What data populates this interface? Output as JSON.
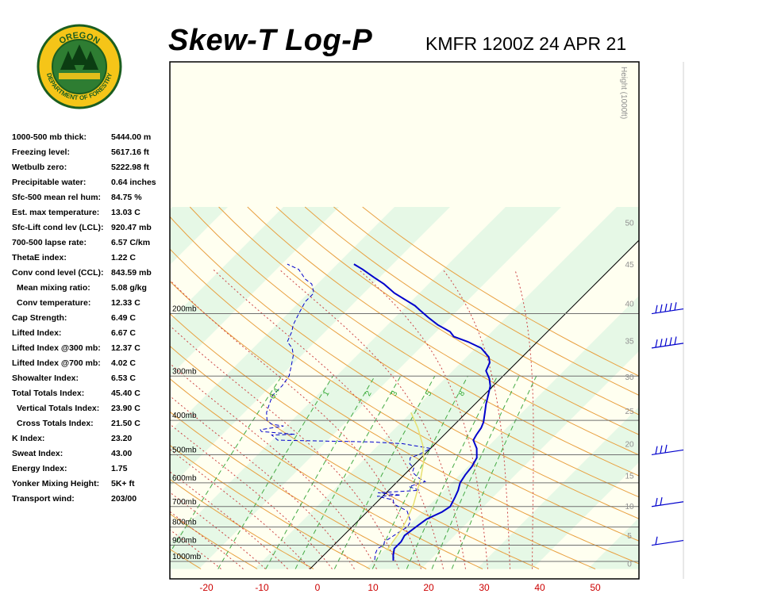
{
  "header": {
    "title": "Skew-T Log-P",
    "station": "KMFR 1200Z 24 APR 21"
  },
  "logo": {
    "top_text": "OREGON",
    "bottom_text": "DEPARTMENT OF FORESTRY",
    "colors": {
      "ring": "#f5c518",
      "center": "#2e7d32",
      "border": "#1b5e20"
    }
  },
  "indices": [
    {
      "label": "1000-500 mb thick:",
      "value": "5444.00 m",
      "indent": false
    },
    {
      "label": "Freezing level:",
      "value": "5617.16 ft",
      "indent": false
    },
    {
      "label": "Wetbulb zero:",
      "value": "5222.98 ft",
      "indent": false
    },
    {
      "label": "Precipitable water:",
      "value": "0.64 inches",
      "indent": false
    },
    {
      "label": "Sfc-500 mean rel hum:",
      "value": "84.75 %",
      "indent": false
    },
    {
      "label": "Est. max temperature:",
      "value": "13.03 C",
      "indent": false
    },
    {
      "label": "Sfc-Lift cond lev (LCL):",
      "value": "920.47 mb",
      "indent": false
    },
    {
      "label": "700-500 lapse rate:",
      "value": "6.57 C/km",
      "indent": false
    },
    {
      "label": "ThetaE index:",
      "value": "1.22 C",
      "indent": false
    },
    {
      "label": "Conv cond level (CCL):",
      "value": "843.59 mb",
      "indent": false
    },
    {
      "label": "Mean mixing ratio:",
      "value": "5.08 g/kg",
      "indent": true
    },
    {
      "label": "Conv temperature:",
      "value": "12.33 C",
      "indent": true
    },
    {
      "label": "Cap Strength:",
      "value": "6.49 C",
      "indent": false
    },
    {
      "label": "Lifted Index:",
      "value": "6.67 C",
      "indent": false
    },
    {
      "label": "Lifted Index @300 mb:",
      "value": "12.37 C",
      "indent": false
    },
    {
      "label": "Lifted Index @700 mb:",
      "value": "4.02 C",
      "indent": false
    },
    {
      "label": "Showalter Index:",
      "value": "6.53 C",
      "indent": false
    },
    {
      "label": "Total Totals Index:",
      "value": "45.40 C",
      "indent": false
    },
    {
      "label": "Vertical Totals Index:",
      "value": "23.90 C",
      "indent": true
    },
    {
      "label": "Cross Totals Index:",
      "value": "21.50 C",
      "indent": true
    },
    {
      "label": "K Index:",
      "value": "23.20",
      "indent": false
    },
    {
      "label": "Sweat Index:",
      "value": "43.00",
      "indent": false
    },
    {
      "label": "Energy Index:",
      "value": "1.75",
      "indent": false
    },
    {
      "label": "Yonker Mixing Height:",
      "value": "5K+ ft",
      "indent": false
    },
    {
      "label": "Transport wind:",
      "value": "203/00",
      "indent": false
    }
  ],
  "chart_data": {
    "type": "line",
    "x_axis": {
      "ticks": [
        -20,
        -10,
        0,
        10,
        20,
        30,
        40,
        50
      ],
      "tick_color": "#cc0000"
    },
    "pressure_levels": [
      {
        "p": 1000,
        "label": "1000mb"
      },
      {
        "p": 900,
        "label": "900mb"
      },
      {
        "p": 800,
        "label": "800mb"
      },
      {
        "p": 700,
        "label": "700mb"
      },
      {
        "p": 600,
        "label": "600mb"
      },
      {
        "p": 500,
        "label": "500mb"
      },
      {
        "p": 400,
        "label": "400mb"
      },
      {
        "p": 300,
        "label": "300mb"
      },
      {
        "p": 200,
        "label": "200mb"
      }
    ],
    "height_axis": {
      "title": "Height (1000ft)",
      "ticks": [
        "0",
        "5",
        "10",
        "15",
        "20",
        "25",
        "30",
        "35",
        "40",
        "45",
        "50"
      ]
    },
    "mixing_ratio_labels": [
      "0.4",
      "1",
      "2",
      "3",
      "5",
      "8"
    ],
    "series": [
      {
        "line": "solid",
        "color": "#0000cc",
        "points": [
          [
            13.5,
            995
          ],
          [
            12.5,
            960
          ],
          [
            11.5,
            920
          ],
          [
            11.5,
            880
          ],
          [
            11,
            845
          ],
          [
            11.5,
            800
          ],
          [
            12,
            760
          ],
          [
            13.5,
            725
          ],
          [
            14,
            700
          ],
          [
            13.2,
            660
          ],
          [
            12.5,
            630
          ],
          [
            11.5,
            600
          ],
          [
            11,
            570
          ],
          [
            10.7,
            540
          ],
          [
            10,
            510
          ],
          [
            8.3,
            480
          ],
          [
            6.2,
            455
          ],
          [
            5.8,
            440
          ],
          [
            5.4,
            420
          ],
          [
            4.8,
            405
          ],
          [
            3.3,
            380
          ],
          [
            2,
            360
          ],
          [
            0.8,
            340
          ],
          [
            -0.5,
            320
          ],
          [
            -2,
            305
          ],
          [
            -4,
            290
          ],
          [
            -4.8,
            275
          ],
          [
            -6,
            265
          ],
          [
            -9,
            250
          ],
          [
            -12.5,
            240
          ],
          [
            -16,
            232
          ],
          [
            -17.5,
            225
          ],
          [
            -21,
            215
          ],
          [
            -24,
            205
          ],
          [
            -27,
            195
          ],
          [
            -28.5,
            190
          ],
          [
            -34.5,
            175
          ],
          [
            -38,
            165
          ],
          [
            -41,
            158
          ],
          [
            -44.5,
            150
          ],
          [
            -47,
            145
          ]
        ]
      },
      {
        "line": "dashed",
        "color": "#0000cc",
        "points": [
          [
            10,
            990
          ],
          [
            9,
            950
          ],
          [
            8.5,
            920
          ],
          [
            9,
            900
          ],
          [
            8.5,
            880
          ],
          [
            9,
            850
          ],
          [
            9.5,
            820
          ],
          [
            10,
            800
          ],
          [
            9.5,
            770
          ],
          [
            7,
            720
          ],
          [
            3.5,
            690
          ],
          [
            2.5,
            670
          ],
          [
            -1,
            655
          ],
          [
            3,
            650
          ],
          [
            -1.5,
            640
          ],
          [
            5.5,
            630
          ],
          [
            3,
            615
          ],
          [
            5,
            595
          ],
          [
            3,
            580
          ],
          [
            1,
            560
          ],
          [
            0.5,
            545
          ],
          [
            -1,
            530
          ],
          [
            -2,
            510
          ],
          [
            -1,
            500
          ],
          [
            0,
            480
          ],
          [
            -6,
            465
          ],
          [
            -12,
            460
          ],
          [
            -29,
            455
          ],
          [
            -31,
            440
          ],
          [
            -27,
            438
          ],
          [
            -33.5,
            430
          ],
          [
            -34,
            425
          ],
          [
            -30.5,
            415
          ],
          [
            -33,
            410
          ],
          [
            -34.5,
            400
          ],
          [
            -36,
            380
          ],
          [
            -37,
            360
          ],
          [
            -38,
            340
          ],
          [
            -38,
            320
          ],
          [
            -38.5,
            300
          ],
          [
            -40,
            280
          ],
          [
            -41.5,
            262
          ],
          [
            -43,
            250
          ],
          [
            -45,
            240
          ],
          [
            -46,
            225
          ],
          [
            -47,
            215
          ],
          [
            -48,
            200
          ],
          [
            -49,
            185
          ],
          [
            -49,
            175
          ],
          [
            -51,
            165
          ],
          [
            -53,
            160
          ],
          [
            -56,
            150
          ],
          [
            -59,
            145
          ]
        ]
      },
      {
        "line": "parcel",
        "color": "#e8e070",
        "points": [
          [
            10.5,
            930
          ],
          [
            10,
            880
          ],
          [
            9.5,
            820
          ],
          [
            8.5,
            760
          ],
          [
            7,
            690
          ],
          [
            5.5,
            640
          ],
          [
            3.5,
            580
          ],
          [
            1,
            520
          ],
          [
            -2,
            470
          ],
          [
            -6,
            420
          ],
          [
            -10,
            380
          ]
        ]
      }
    ],
    "wind_barbs": [
      {
        "p": 200,
        "barbs": 5,
        "flag": false
      },
      {
        "p": 250,
        "barbs": 5,
        "flag": false
      },
      {
        "p": 500,
        "barbs": 3,
        "flag": false
      },
      {
        "p": 700,
        "barbs": 2,
        "flag": false
      },
      {
        "p": 900,
        "barbs": 1,
        "flag": false
      }
    ]
  }
}
